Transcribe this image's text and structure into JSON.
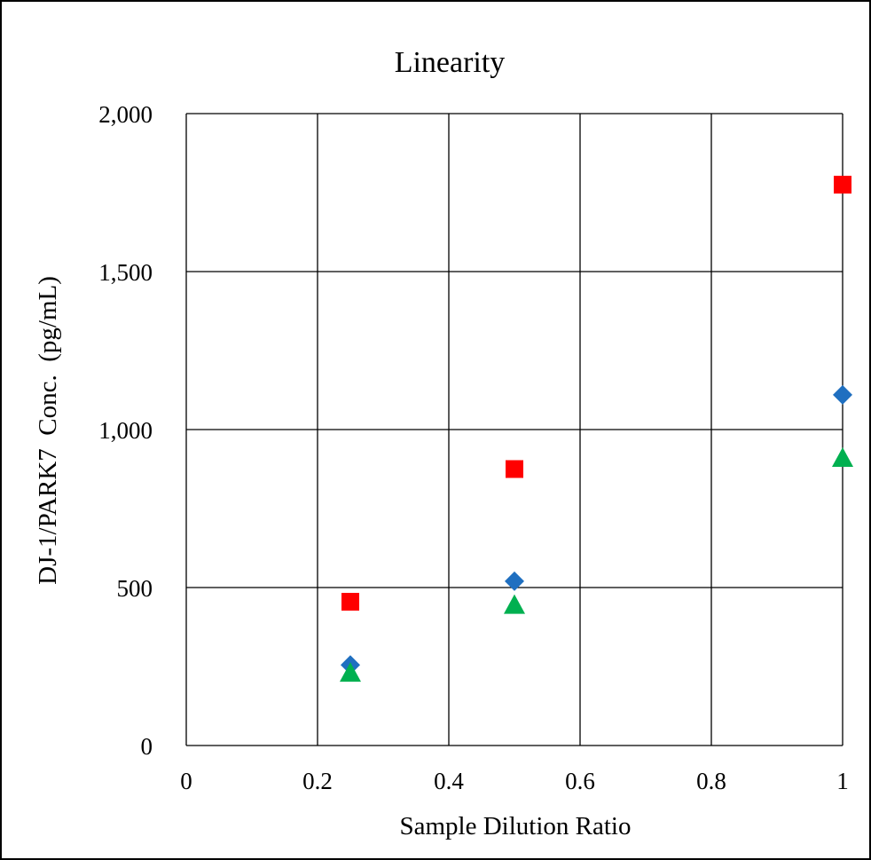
{
  "chart_data": {
    "type": "scatter",
    "title": "Linearity",
    "xlabel": "Sample Dilution Ratio",
    "ylabel": "DJ-1/PARK7  Conc.  (pg/mL)",
    "xlim": [
      0,
      1
    ],
    "ylim": [
      0,
      2000
    ],
    "x_ticks": [
      0,
      0.2,
      0.4,
      0.6,
      0.8,
      1
    ],
    "x_tick_labels": [
      "0",
      "0.2",
      "0.4",
      "0.6",
      "0.8",
      "1"
    ],
    "y_ticks": [
      0,
      500,
      1000,
      1500,
      2000
    ],
    "y_tick_labels": [
      "0",
      "500",
      "1,000",
      "1,500",
      "2,000"
    ],
    "grid": true,
    "legend": "none",
    "series": [
      {
        "marker": "square",
        "color": "#ff0000",
        "x": [
          0.25,
          0.5,
          1
        ],
        "y": [
          455,
          875,
          1775
        ]
      },
      {
        "marker": "diamond",
        "color": "#1f6fc0",
        "x": [
          0.25,
          0.5,
          1
        ],
        "y": [
          255,
          520,
          1110
        ]
      },
      {
        "marker": "triangle",
        "color": "#00b050",
        "x": [
          0.25,
          0.5,
          1
        ],
        "y": [
          230,
          445,
          910
        ]
      }
    ]
  }
}
